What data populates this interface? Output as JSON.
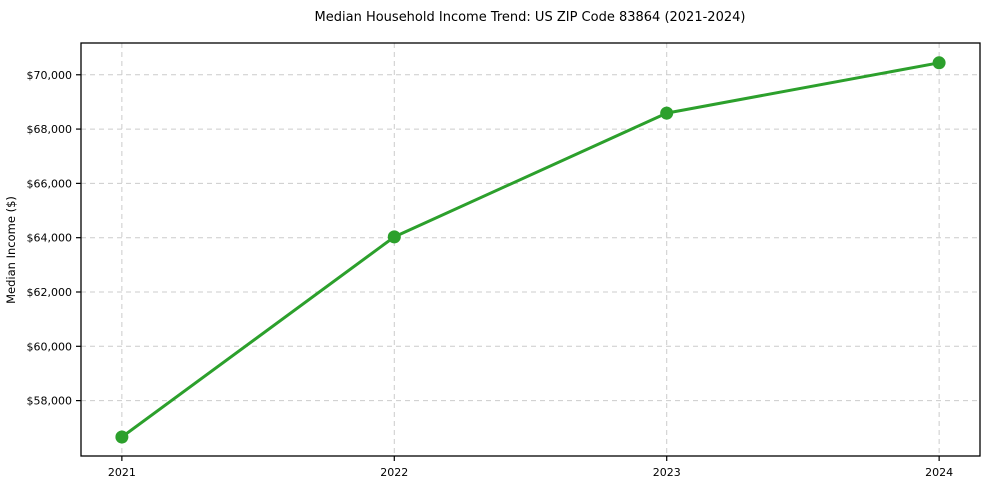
{
  "chart_data": {
    "type": "line",
    "title": "Median Household Income Trend: US ZIP Code 83864 (2021-2024)",
    "xlabel": "",
    "ylabel": "Median Income ($)",
    "x": [
      2021,
      2022,
      2023,
      2024
    ],
    "xtick_labels": [
      "2021",
      "2022",
      "2023",
      "2024"
    ],
    "series": [
      {
        "name": "Median Household Income",
        "values": [
          56660,
          64030,
          68590,
          70440
        ],
        "color": "#2ca02c",
        "marker": "circle"
      }
    ],
    "yticks": [
      58000,
      60000,
      62000,
      64000,
      66000,
      68000,
      70000
    ],
    "ytick_labels": [
      "$58,000",
      "$60,000",
      "$62,000",
      "$64,000",
      "$66,000",
      "$68,000",
      "$70,000"
    ],
    "ylim": [
      55960,
      71170
    ],
    "xlim": [
      2020.85,
      2024.15
    ],
    "grid": true,
    "grid_style": "dashed",
    "legend": "none",
    "colors": {
      "line": "#2ca02c",
      "marker": "#2ca02c",
      "grid": "#cccccc",
      "spine": "#000000",
      "background": "#ffffff",
      "text": "#000000"
    }
  }
}
